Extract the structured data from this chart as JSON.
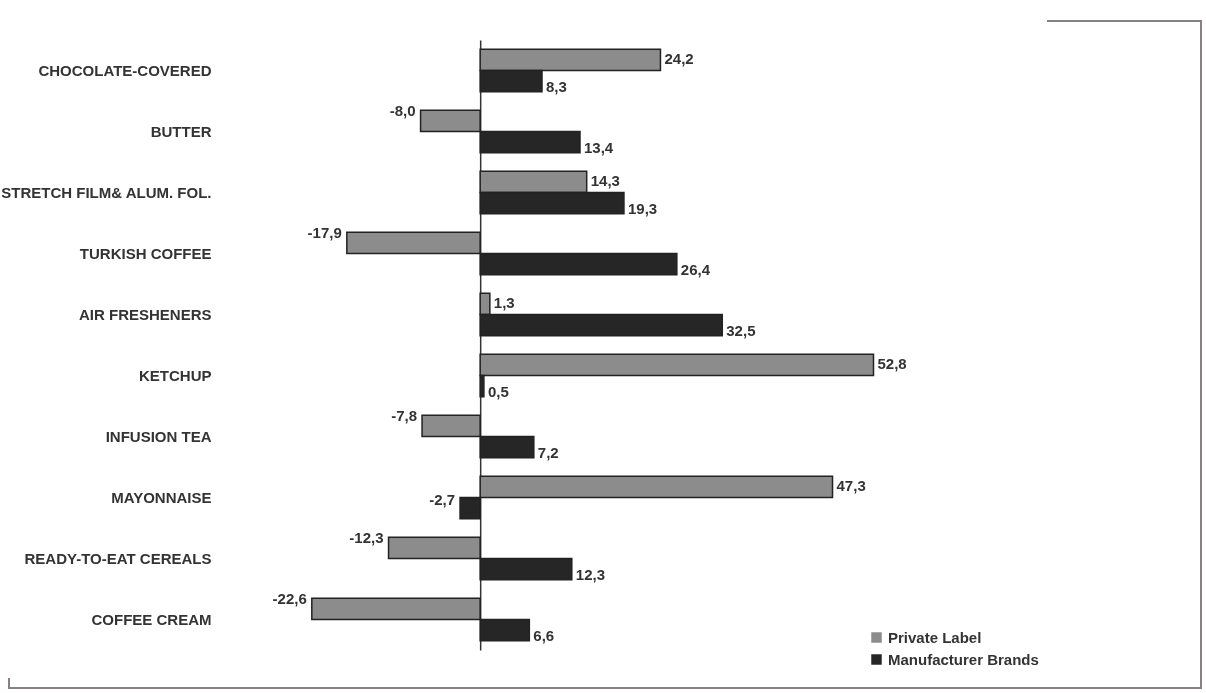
{
  "chart_data": {
    "type": "bar",
    "orientation": "horizontal",
    "legend": "bottom right",
    "categories": [
      "CHOCOLATE-COVERED",
      "BUTTER",
      "STRETCH FILM& ALUM. FOL.",
      "TURKISH COFFEE",
      "AIR FRESHENERS",
      "KETCHUP",
      "INFUSION TEA",
      "MAYONNAISE",
      "READY-TO-EAT CEREALS",
      "COFFEE CREAM"
    ],
    "series": [
      {
        "name": "Private Label",
        "color": "#8c8c8c",
        "values": [
          24.2,
          -8.0,
          14.3,
          -17.9,
          1.3,
          52.8,
          -7.8,
          47.3,
          -12.3,
          -22.6
        ],
        "value_labels": [
          "24,2",
          "-8,0",
          "14,3",
          "-17,9",
          "1,3",
          "52,8",
          "-7,8",
          "47,3",
          "-12,3",
          "-22,6"
        ]
      },
      {
        "name": "Manufacturer Brands",
        "color": "#262626",
        "values": [
          8.3,
          13.4,
          19.3,
          26.4,
          32.5,
          0.5,
          7.2,
          -2.7,
          12.3,
          6.6
        ],
        "value_labels": [
          "8,3",
          "13,4",
          "19,3",
          "26,4",
          "32,5",
          "0,5",
          "7,2",
          "-2,7",
          "12,3",
          "6,6"
        ]
      }
    ]
  }
}
